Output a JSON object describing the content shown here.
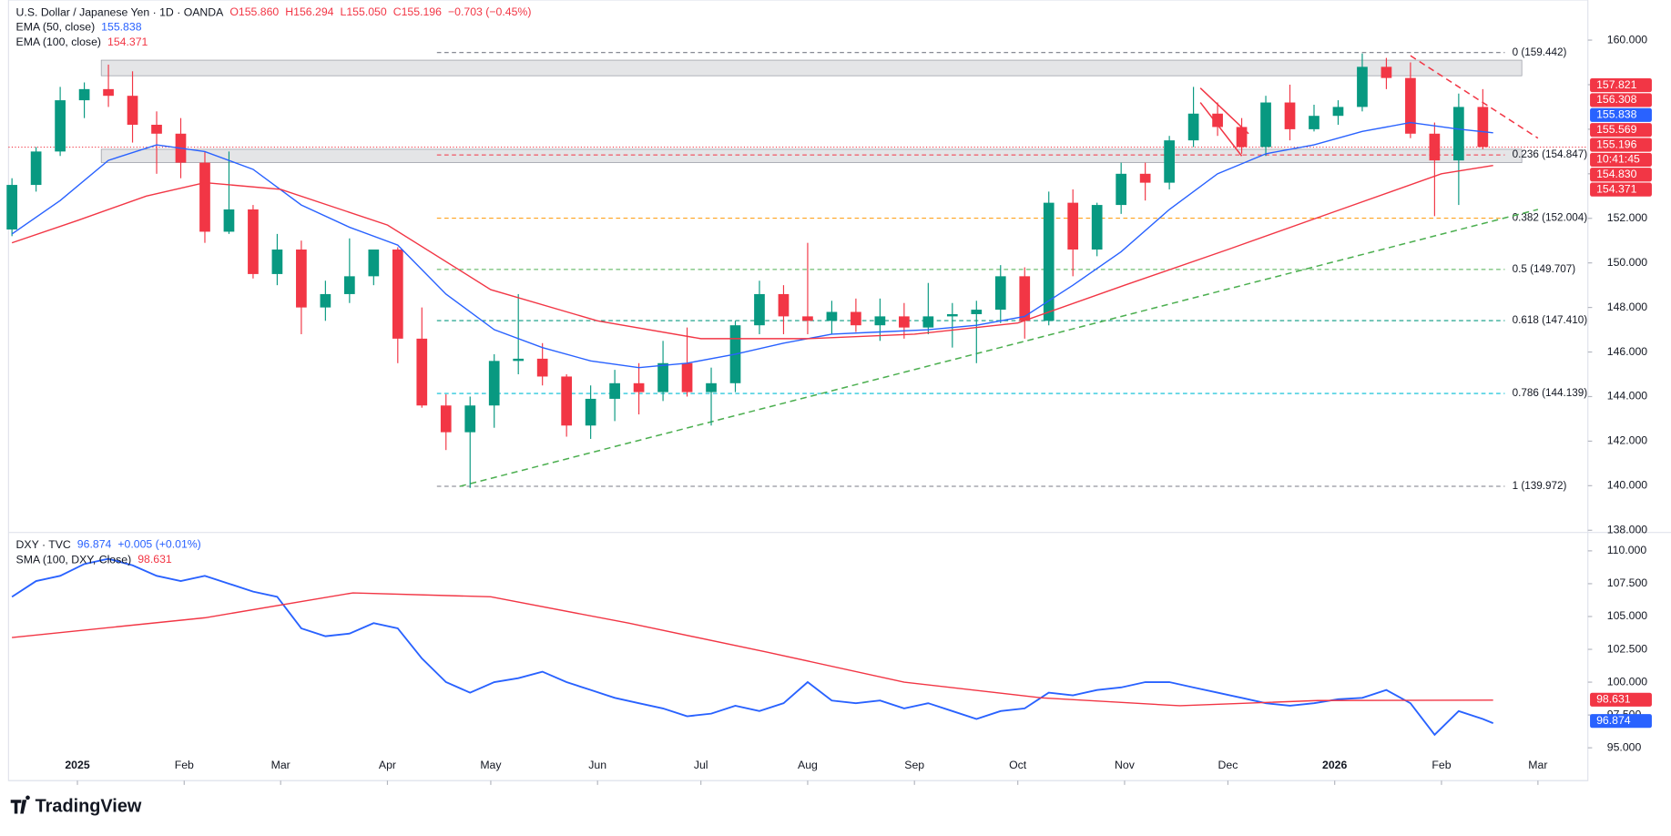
{
  "chart_data": [
    {
      "type": "candlestick",
      "title": "U.S. Dollar / Japanese Yen · 1D · OANDA",
      "ohlc": [
        "O155.860",
        "H156.294",
        "L155.050",
        "C155.196",
        "−0.703 (−0.45%)"
      ],
      "x": [
        -19,
        -12,
        -5,
        2,
        9,
        16,
        23,
        30,
        37,
        44,
        51,
        58,
        65,
        72,
        79,
        86,
        93,
        100,
        107,
        114,
        121,
        128,
        135,
        142,
        149,
        156,
        163,
        170,
        177,
        184,
        191,
        198,
        205,
        212,
        219,
        226,
        233,
        240,
        247,
        254,
        261,
        268,
        275,
        282,
        289,
        296,
        303,
        310,
        317,
        324,
        331,
        338,
        345,
        352,
        359,
        366,
        373,
        380,
        387,
        394,
        401,
        408
      ],
      "open": [
        151.5,
        153.5,
        155.0,
        157.3,
        157.8,
        157.5,
        156.2,
        155.8,
        154.5,
        151.4,
        152.4,
        149.5,
        150.6,
        148.0,
        148.6,
        149.4,
        150.6,
        146.6,
        143.6,
        142.4,
        143.6,
        145.6,
        145.7,
        144.9,
        142.7,
        143.9,
        144.6,
        144.2,
        145.5,
        144.2,
        144.6,
        147.2,
        148.6,
        147.6,
        147.4,
        147.8,
        147.2,
        147.6,
        147.1,
        147.6,
        147.7,
        147.9,
        149.4,
        147.4,
        152.7,
        150.6,
        152.6,
        154.0,
        153.6,
        155.5,
        156.7,
        156.1,
        155.2,
        157.2,
        156.0,
        156.6,
        157.0,
        158.8,
        158.3,
        155.8,
        154.6,
        157.0
      ],
      "high": [
        153.8,
        155.2,
        157.9,
        158.1,
        158.9,
        158.6,
        156.8,
        156.5,
        155.0,
        155.0,
        152.6,
        151.3,
        151.0,
        149.2,
        151.1,
        150.5,
        150.7,
        148.0,
        144.1,
        144.0,
        145.9,
        148.6,
        146.4,
        145.0,
        144.5,
        145.2,
        145.5,
        146.5,
        147.1,
        145.3,
        147.4,
        149.2,
        149.0,
        150.9,
        148.3,
        148.4,
        148.4,
        148.2,
        149.1,
        148.2,
        148.3,
        149.9,
        149.8,
        153.2,
        153.3,
        152.7,
        154.5,
        154.5,
        155.7,
        157.9,
        157.2,
        156.5,
        157.5,
        158.0,
        157.1,
        157.3,
        159.4,
        159.2,
        159.0,
        156.3,
        157.6,
        157.8
      ],
      "low": [
        151.2,
        153.2,
        154.8,
        156.5,
        157.0,
        155.4,
        154.0,
        153.8,
        150.9,
        151.3,
        149.3,
        149.0,
        146.8,
        147.4,
        148.2,
        149.0,
        145.5,
        143.5,
        141.6,
        139.9,
        142.6,
        145.0,
        144.5,
        142.2,
        142.1,
        142.9,
        143.2,
        143.8,
        144.0,
        142.7,
        144.2,
        146.8,
        146.8,
        146.8,
        146.8,
        146.9,
        146.5,
        146.6,
        146.8,
        146.2,
        145.5,
        147.3,
        146.6,
        147.2,
        149.4,
        150.3,
        152.2,
        152.8,
        153.3,
        155.2,
        155.7,
        154.9,
        154.8,
        155.5,
        155.9,
        156.2,
        156.8,
        157.8,
        155.6,
        152.1,
        152.6,
        155.1
      ],
      "close": [
        153.5,
        155.0,
        157.3,
        157.8,
        157.5,
        156.2,
        155.8,
        154.5,
        151.4,
        152.4,
        149.5,
        150.6,
        148.0,
        148.6,
        149.4,
        150.6,
        146.6,
        143.6,
        142.4,
        143.6,
        145.6,
        145.7,
        144.9,
        142.7,
        143.9,
        144.6,
        144.2,
        145.5,
        144.2,
        144.6,
        147.2,
        148.6,
        147.6,
        147.4,
        147.8,
        147.2,
        147.6,
        147.1,
        147.6,
        147.7,
        147.9,
        149.4,
        147.4,
        152.7,
        150.6,
        152.6,
        154.0,
        153.6,
        155.5,
        156.7,
        156.1,
        155.2,
        157.2,
        156.0,
        156.6,
        157.0,
        158.8,
        158.3,
        155.8,
        154.6,
        157.0,
        155.2
      ],
      "up_color": "#089981",
      "down_color": "#f23645",
      "overlays": [
        {
          "name": "EMA (50, close)",
          "last": "155.838",
          "color": "#2962ff",
          "x": [
            -19,
            -5,
            9,
            23,
            37,
            51,
            65,
            79,
            93,
            107,
            121,
            135,
            149,
            163,
            177,
            191,
            205,
            219,
            233,
            247,
            261,
            275,
            289,
            303,
            317,
            331,
            345,
            359,
            373,
            387,
            401,
            411
          ],
          "values": [
            151.3,
            152.8,
            154.6,
            155.3,
            155.0,
            154.2,
            152.6,
            151.6,
            150.8,
            148.6,
            147.0,
            146.2,
            145.6,
            145.3,
            145.5,
            145.9,
            146.4,
            146.8,
            146.9,
            147.0,
            147.2,
            147.6,
            149.0,
            150.5,
            152.4,
            154.0,
            154.9,
            155.3,
            155.9,
            156.3,
            156.0,
            155.838
          ]
        },
        {
          "name": "EMA (100, close)",
          "last": "154.371",
          "color": "#f23645",
          "x": [
            -19,
            0,
            20,
            37,
            59,
            90,
            120,
            151,
            181,
            212,
            243,
            273,
            304,
            334,
            365,
            396,
            411
          ],
          "values": [
            150.9,
            151.9,
            153.0,
            153.6,
            153.3,
            151.7,
            148.8,
            147.4,
            146.6,
            146.6,
            146.8,
            147.3,
            149.0,
            150.6,
            152.3,
            154.0,
            154.371
          ]
        }
      ],
      "fib": [
        {
          "label": "0 (159.442)",
          "value": 159.442,
          "color": "#787b86"
        },
        {
          "label": "0.236 (154.847)",
          "value": 154.847,
          "color": "#f23645"
        },
        {
          "label": "0.382 (152.004)",
          "value": 152.004,
          "color": "#ff9800"
        },
        {
          "label": "0.5 (149.707)",
          "value": 149.707,
          "color": "#4caf50"
        },
        {
          "label": "0.618 (147.410)",
          "value": 147.41,
          "color": "#089981"
        },
        {
          "label": "0.786 (144.139)",
          "value": 144.139,
          "color": "#00bcd4"
        },
        {
          "label": "1 (139.972)",
          "value": 139.972,
          "color": "#787b86"
        }
      ],
      "zones": [
        {
          "from": 158.4,
          "to": 159.1
        },
        {
          "from": 154.5,
          "to": 155.1
        }
      ],
      "trendlines": [
        {
          "x": [
            111,
            424
          ],
          "y": [
            139.97,
            152.4
          ],
          "color": "#4caf50",
          "dashed": true
        },
        {
          "x": [
            387,
            424
          ],
          "y": [
            159.3,
            155.6
          ],
          "color": "#f23645",
          "dashed": true
        },
        {
          "x": [
            326,
            340
          ],
          "y": [
            157.85,
            155.8
          ],
          "color": "#f23645",
          "dashed": false
        },
        {
          "x": [
            326,
            338
          ],
          "y": [
            157.2,
            154.8
          ],
          "color": "#f23645",
          "dashed": false
        }
      ],
      "current_price": 155.196,
      "price_badges": [
        {
          "label": "157.821",
          "color": "#f23645"
        },
        {
          "label": "156.308",
          "color": "#f23645"
        },
        {
          "label": "155.838",
          "color": "#2962ff"
        },
        {
          "label": "155.569",
          "color": "#f23645"
        },
        {
          "label": "155.196",
          "color": "#f23645"
        },
        {
          "label": "10:41:45",
          "color": "#f23645"
        },
        {
          "label": "154.830",
          "color": "#f23645"
        },
        {
          "label": "154.371",
          "color": "#f23645"
        }
      ],
      "xlim": [
        -20,
        438.5
      ],
      "ylim": [
        137.9,
        161.8
      ],
      "yticks": [
        {
          "value": 138,
          "label": "138.000"
        },
        {
          "value": 140,
          "label": "140.000"
        },
        {
          "value": 142,
          "label": "142.000"
        },
        {
          "value": 144,
          "label": "144.000"
        },
        {
          "value": 146,
          "label": "146.000"
        },
        {
          "value": 148,
          "label": "148.000"
        },
        {
          "value": 150,
          "label": "150.000"
        },
        {
          "value": 152,
          "label": "152.000"
        },
        {
          "value": 154,
          "label": "154.000"
        },
        {
          "value": 156,
          "label": "156.000"
        },
        {
          "value": 158,
          "label": "158.000"
        },
        {
          "value": 160,
          "label": "160.000"
        }
      ]
    },
    {
      "type": "line",
      "title": "DXY · TVC",
      "quote": [
        "96.874",
        "+0.005 (+0.01%)"
      ],
      "series": [
        {
          "name": "DXY",
          "color": "#2962ff",
          "x": [
            -19,
            -12,
            -5,
            2,
            9,
            16,
            23,
            30,
            37,
            44,
            51,
            58,
            65,
            72,
            79,
            86,
            93,
            100,
            107,
            114,
            121,
            128,
            135,
            142,
            149,
            156,
            163,
            170,
            177,
            184,
            191,
            198,
            205,
            212,
            219,
            226,
            233,
            240,
            247,
            254,
            261,
            268,
            275,
            282,
            289,
            296,
            303,
            310,
            317,
            324,
            331,
            338,
            345,
            352,
            359,
            366,
            373,
            380,
            387,
            394,
            401,
            408,
            411
          ],
          "values": [
            106.5,
            107.7,
            108.1,
            109.0,
            109.4,
            108.9,
            108.1,
            107.7,
            108.1,
            107.5,
            106.9,
            106.5,
            104.1,
            103.5,
            103.7,
            104.5,
            104.1,
            101.8,
            100.0,
            99.2,
            100.0,
            100.3,
            100.8,
            100.0,
            99.4,
            98.8,
            98.4,
            98.0,
            97.4,
            97.6,
            98.2,
            97.8,
            98.4,
            100.0,
            98.6,
            98.4,
            98.6,
            98.0,
            98.4,
            97.8,
            97.2,
            97.8,
            98.0,
            99.2,
            99.0,
            99.4,
            99.6,
            100.0,
            100.0,
            99.6,
            99.2,
            98.8,
            98.4,
            98.2,
            98.4,
            98.7,
            98.8,
            99.4,
            98.4,
            96.0,
            97.8,
            97.2,
            96.874
          ]
        },
        {
          "name": "SMA (100, DXY, Close)",
          "last": "98.631",
          "color": "#f23645",
          "x": [
            -19,
            37,
            80,
            120,
            160,
            200,
            240,
            280,
            320,
            360,
            411
          ],
          "values": [
            103.4,
            104.9,
            106.8,
            106.5,
            104.5,
            102.3,
            100.0,
            98.8,
            98.2,
            98.6,
            98.631
          ]
        }
      ],
      "price_badges": [
        {
          "label": "98.631",
          "color": "#f23645"
        },
        {
          "label": "96.874",
          "color": "#2962ff"
        }
      ],
      "xlim": [
        -20,
        438.5
      ],
      "xticks": [
        {
          "value": 0,
          "label": "2025"
        },
        {
          "value": 31,
          "label": "Feb"
        },
        {
          "value": 59,
          "label": "Mar"
        },
        {
          "value": 90,
          "label": "Apr"
        },
        {
          "value": 120,
          "label": "May"
        },
        {
          "value": 151,
          "label": "Jun"
        },
        {
          "value": 181,
          "label": "Jul"
        },
        {
          "value": 212,
          "label": "Aug"
        },
        {
          "value": 243,
          "label": "Sep"
        },
        {
          "value": 273,
          "label": "Oct"
        },
        {
          "value": 304,
          "label": "Nov"
        },
        {
          "value": 334,
          "label": "Dec"
        },
        {
          "value": 365,
          "label": "2026"
        },
        {
          "value": 396,
          "label": "Feb"
        },
        {
          "value": 424,
          "label": "Mar"
        }
      ],
      "ylim": [
        92.5,
        111.4
      ],
      "yticks": [
        {
          "value": 95,
          "label": "95.000"
        },
        {
          "value": 97.5,
          "label": "97.500"
        },
        {
          "value": 100,
          "label": "100.000"
        },
        {
          "value": 102.5,
          "label": "102.500"
        },
        {
          "value": 105,
          "label": "105.000"
        },
        {
          "value": 107.5,
          "label": "107.500"
        },
        {
          "value": 110,
          "label": "110.000"
        }
      ]
    }
  ],
  "footer": {
    "brand": "TradingView"
  }
}
